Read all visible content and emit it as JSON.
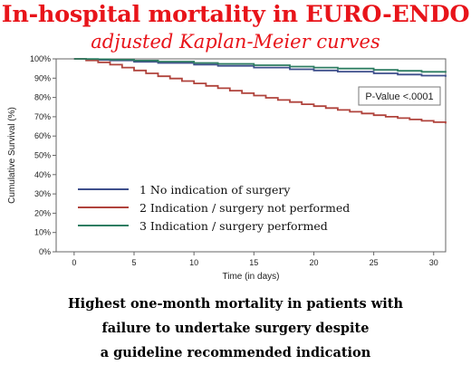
{
  "title": "In-hospital mortality in EURO-ENDO",
  "subtitle": "adjusted Kaplan-Meier curves",
  "caption": [
    "Highest one-month mortality in patients with",
    "failure to undertake surgery despite",
    "a guideline recommended indication"
  ],
  "chart_data": {
    "type": "line",
    "xlabel": "Time (in days)",
    "ylabel": "Cumulative Survival (%)",
    "xlim": [
      -1.5,
      31
    ],
    "ylim": [
      0,
      100
    ],
    "xticks": [
      0,
      5,
      10,
      15,
      20,
      25,
      30
    ],
    "yticks": [
      0,
      10,
      20,
      30,
      40,
      50,
      60,
      70,
      80,
      90,
      100
    ],
    "ytick_labels": [
      "0%",
      "10%",
      "20%",
      "30%",
      "40%",
      "50%",
      "60%",
      "70%",
      "80%",
      "90%",
      "100%"
    ],
    "annotation": "P-Value <.0001",
    "legend_position": "lower-left",
    "series": [
      {
        "name": "1 No indication of surgery",
        "color": "#3e4f8c",
        "x": [
          0,
          1,
          2,
          3,
          5,
          7,
          10,
          12,
          15,
          18,
          20,
          22,
          25,
          27,
          29,
          31
        ],
        "y": [
          100,
          99.8,
          99.5,
          99.2,
          98.5,
          97.9,
          97,
          96.4,
          95.5,
          94.6,
          94,
          93.4,
          92.5,
          91.9,
          91.3,
          90.7
        ]
      },
      {
        "name": "2 Indication / surgery not performed",
        "color": "#b0433c",
        "x": [
          0,
          1,
          2,
          3,
          4,
          5,
          6,
          7,
          8,
          9,
          10,
          11,
          12,
          13,
          14,
          15,
          16,
          17,
          18,
          19,
          20,
          21,
          22,
          23,
          24,
          25,
          26,
          27,
          28,
          29,
          30,
          31
        ],
        "y": [
          100,
          99.2,
          98.2,
          97,
          95.5,
          94,
          92.5,
          91,
          89.8,
          88.5,
          87.3,
          86,
          84.8,
          83.5,
          82.2,
          81,
          79.8,
          78.7,
          77.6,
          76.5,
          75.5,
          74.5,
          73.5,
          72.6,
          71.7,
          70.8,
          70,
          69.3,
          68.6,
          67.9,
          67.2,
          66.5
        ]
      },
      {
        "name": "3 Indication / surgery performed",
        "color": "#2e7d62",
        "x": [
          0,
          1,
          2,
          3,
          5,
          7,
          10,
          12,
          15,
          18,
          20,
          22,
          25,
          27,
          29,
          31
        ],
        "y": [
          100,
          99.9,
          99.8,
          99.6,
          99.1,
          98.6,
          97.9,
          97.4,
          96.7,
          96,
          95.5,
          95,
          94.3,
          93.8,
          93.3,
          92.8
        ]
      }
    ]
  }
}
